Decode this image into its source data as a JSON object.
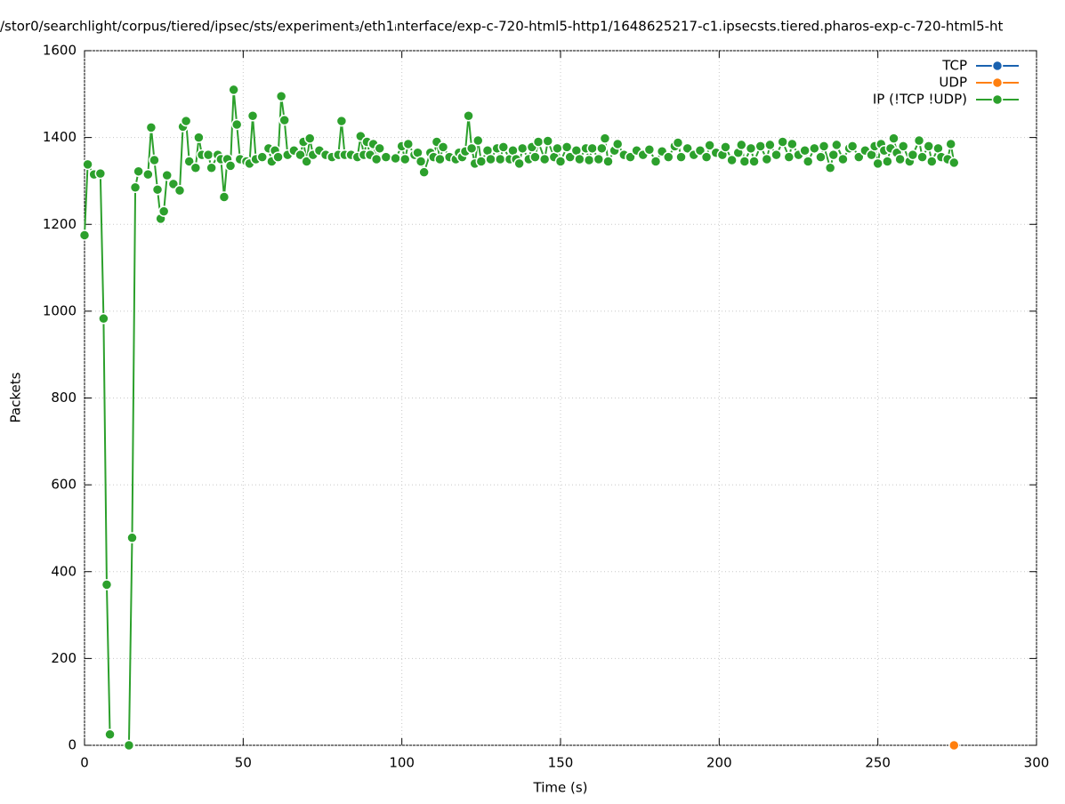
{
  "chart_data": {
    "type": "line",
    "title": "/stor0/searchlight/corpus/tiered/ipsec/sts/experiment₃/eth1ᵢnterface/exp-c-720-html5-http1/1648625217-c1.ipsecsts.tiered.pharos-exp-c-720-html5-ht",
    "x_label": "Time (s)",
    "y_label": "Packets",
    "xlim": [
      0,
      300
    ],
    "xticks": [
      0,
      50,
      100,
      150,
      200,
      250,
      300
    ],
    "ylim": [
      0,
      1600
    ],
    "yticks": [
      0,
      200,
      400,
      600,
      800,
      1000,
      1200,
      1400,
      1600
    ],
    "grid": true,
    "legend": "top-right",
    "series": [
      {
        "name": "TCP",
        "color": "#1a62b0",
        "x": [],
        "values": []
      },
      {
        "name": "UDP",
        "color": "#ff7f0e",
        "x": [
          274
        ],
        "values": [
          0
        ]
      },
      {
        "name": "IP (!TCP  !UDP)",
        "color": "#2ca02c",
        "x": [
          0,
          1,
          3,
          5,
          6,
          7,
          8,
          11,
          14,
          15,
          16,
          17,
          20,
          21,
          22,
          23,
          24,
          25,
          26,
          28,
          30,
          31,
          32,
          33,
          35,
          36,
          37,
          39,
          40,
          42,
          43,
          44,
          45,
          46,
          47,
          48,
          49,
          51,
          52,
          53,
          54,
          56,
          58,
          59,
          60,
          61,
          62,
          63,
          64,
          66,
          68,
          69,
          70,
          71,
          72,
          74,
          76,
          78,
          80,
          81,
          82,
          84,
          86,
          87,
          88,
          89,
          90,
          91,
          92,
          93,
          95,
          98,
          100,
          101,
          102,
          104,
          105,
          106,
          107,
          109,
          110,
          111,
          112,
          113,
          115,
          117,
          118,
          119,
          120,
          121,
          122,
          123,
          124,
          125,
          127,
          128,
          130,
          131,
          132,
          134,
          135,
          136,
          137,
          138,
          140,
          141,
          142,
          143,
          145,
          146,
          148,
          149,
          150,
          152,
          153,
          155,
          156,
          158,
          159,
          160,
          162,
          163,
          164,
          165,
          167,
          168,
          170,
          172,
          174,
          176,
          178,
          180,
          182,
          184,
          186,
          187,
          188,
          190,
          192,
          194,
          196,
          197,
          199,
          201,
          202,
          204,
          206,
          207,
          208,
          210,
          211,
          213,
          215,
          216,
          218,
          220,
          222,
          223,
          225,
          227,
          228,
          230,
          232,
          233,
          235,
          236,
          237,
          239,
          241,
          242,
          244,
          246,
          248,
          249,
          250,
          251,
          252,
          253,
          254,
          255,
          256,
          257,
          258,
          260,
          261,
          263,
          264,
          266,
          267,
          269,
          270,
          272,
          273,
          274
        ],
        "values": [
          1175,
          1338,
          1315,
          1317,
          983,
          370,
          25,
          null,
          0,
          478,
          1285,
          1322,
          1315,
          1423,
          1348,
          1280,
          1213,
          1230,
          1313,
          1293,
          1278,
          1425,
          1438,
          1345,
          1330,
          1400,
          1360,
          1360,
          1330,
          1360,
          1350,
          1263,
          1350,
          1335,
          1510,
          1430,
          1350,
          1345,
          1340,
          1450,
          1350,
          1355,
          1375,
          1345,
          1370,
          1355,
          1495,
          1440,
          1360,
          1370,
          1360,
          1390,
          1345,
          1398,
          1360,
          1370,
          1360,
          1355,
          1360,
          1438,
          1360,
          1360,
          1355,
          1403,
          1360,
          1390,
          1360,
          1385,
          1350,
          1375,
          1355,
          1352,
          1380,
          1350,
          1385,
          1360,
          1365,
          1345,
          1320,
          1365,
          1355,
          1390,
          1350,
          1378,
          1355,
          1350,
          1365,
          1355,
          1368,
          1450,
          1375,
          1340,
          1393,
          1345,
          1370,
          1350,
          1375,
          1350,
          1378,
          1350,
          1370,
          1350,
          1340,
          1375,
          1350,
          1378,
          1355,
          1390,
          1350,
          1392,
          1355,
          1375,
          1345,
          1378,
          1355,
          1370,
          1350,
          1375,
          1348,
          1375,
          1350,
          1375,
          1398,
          1345,
          1370,
          1385,
          1360,
          1355,
          1370,
          1360,
          1372,
          1345,
          1368,
          1355,
          1380,
          1388,
          1355,
          1375,
          1360,
          1370,
          1355,
          1382,
          1365,
          1360,
          1378,
          1348,
          1365,
          1383,
          1345,
          1375,
          1345,
          1380,
          1350,
          1383,
          1360,
          1390,
          1355,
          1385,
          1360,
          1370,
          1345,
          1375,
          1355,
          1380,
          1330,
          1360,
          1383,
          1350,
          1375,
          1380,
          1355,
          1370,
          1360,
          1380,
          1340,
          1385,
          1370,
          1345,
          1375,
          1398,
          1365,
          1350,
          1380,
          1345,
          1360,
          1393,
          1355,
          1380,
          1345,
          1375,
          1355,
          1350,
          1385,
          1342
        ]
      }
    ]
  }
}
